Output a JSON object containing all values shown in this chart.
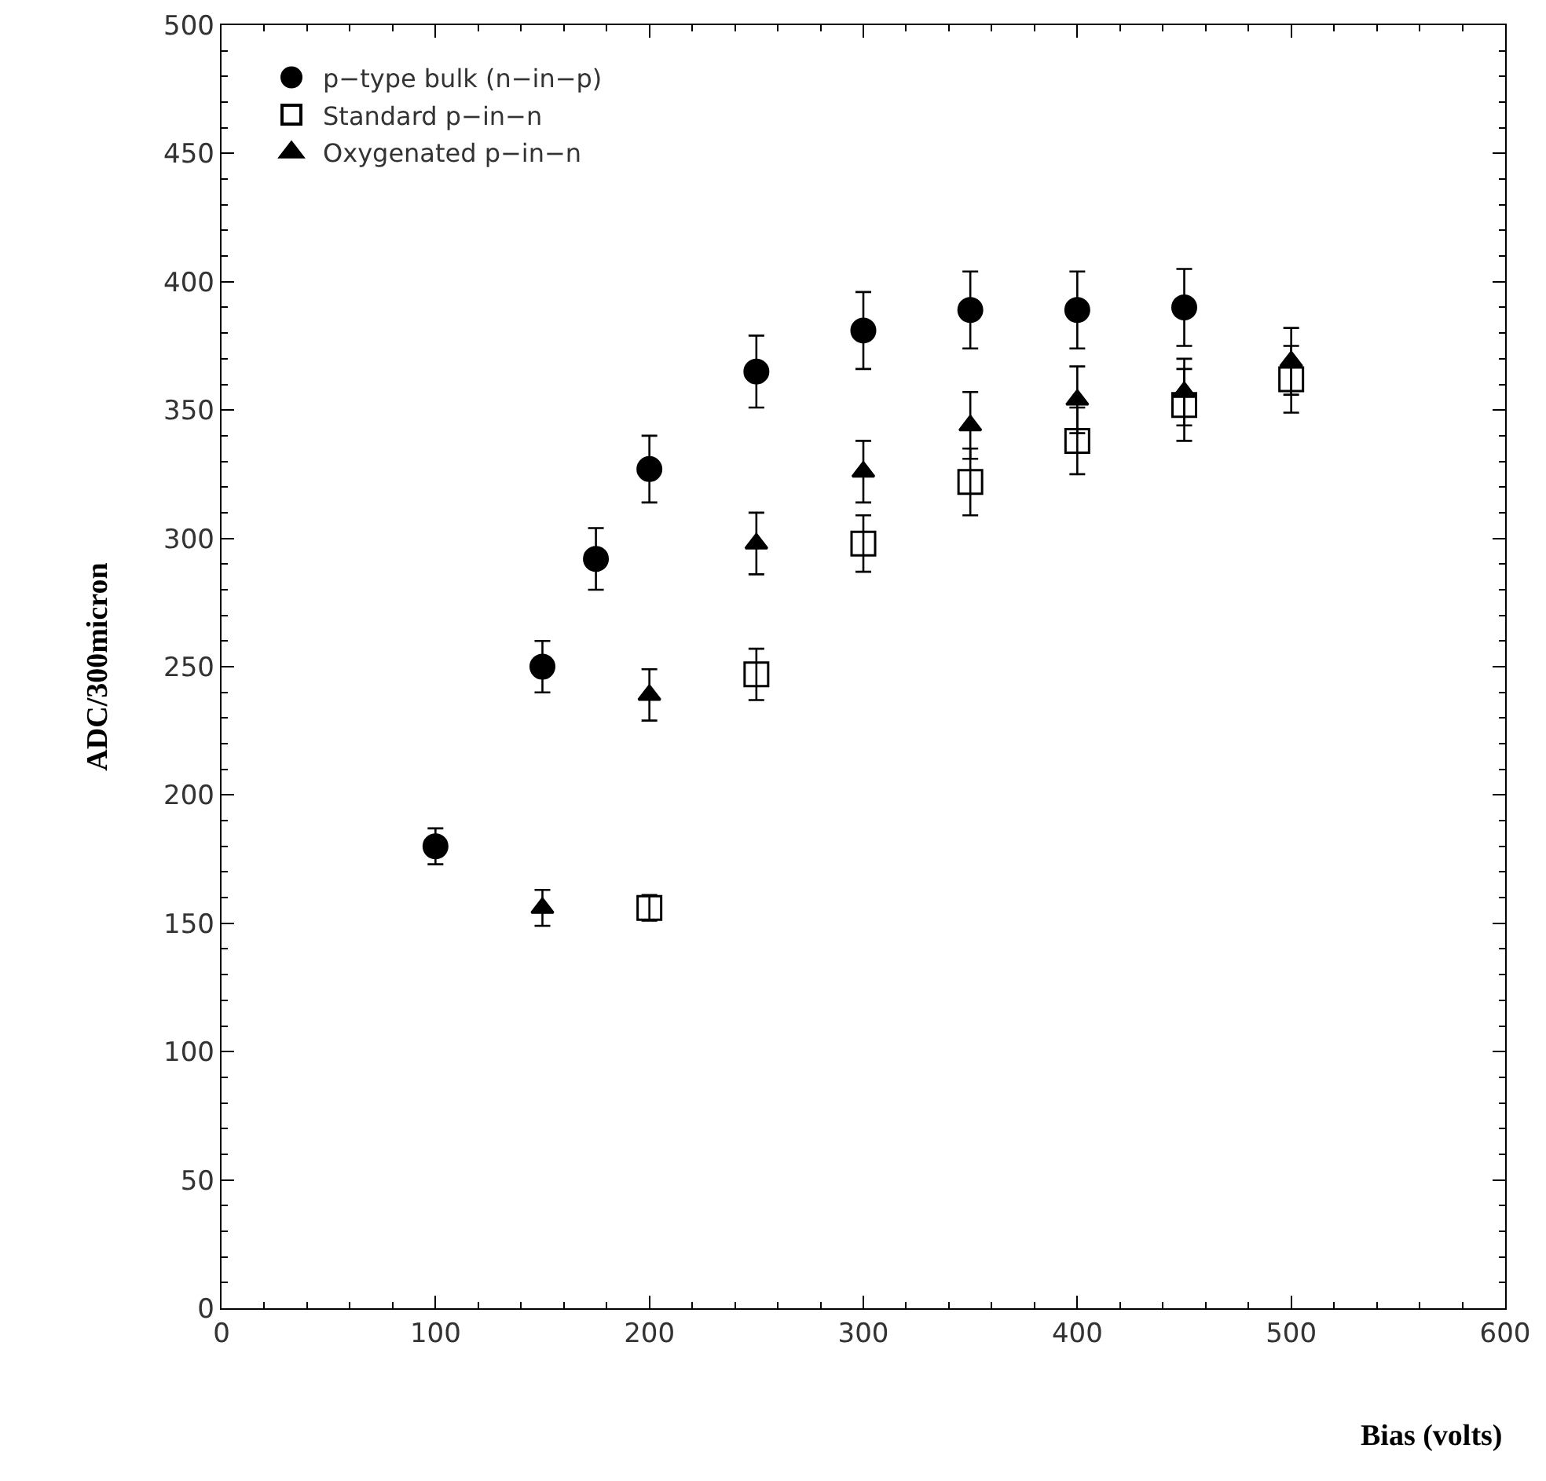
{
  "chart_data": {
    "type": "scatter",
    "xlabel": "Bias (volts)",
    "ylabel": "ADC/300micron",
    "xlim": [
      0,
      600
    ],
    "xticks": [
      0,
      100,
      200,
      300,
      400,
      500,
      600
    ],
    "ylim": [
      0,
      500
    ],
    "yticks": [
      0,
      50,
      100,
      150,
      200,
      250,
      300,
      350,
      400,
      450,
      500
    ],
    "grid": false,
    "legend": "top left",
    "series": [
      {
        "name": "p−type bulk (n−in−p)",
        "color": "#000000",
        "marker": "circle",
        "x": [
          100,
          150,
          175,
          200,
          250,
          300,
          350,
          400,
          450
        ],
        "values": [
          180,
          250,
          292,
          327,
          365,
          381,
          389,
          389,
          390
        ],
        "errors": [
          7,
          10,
          12,
          13,
          14,
          15,
          15,
          15,
          15
        ]
      },
      {
        "name": "Standard p−in−n",
        "color": "#000000",
        "marker": "square",
        "x": [
          200,
          250,
          300,
          350,
          400,
          450,
          500
        ],
        "values": [
          156,
          247,
          298,
          322,
          338,
          352,
          362
        ],
        "errors": [
          5,
          10,
          11,
          13,
          13,
          14,
          13
        ]
      },
      {
        "name": "Oxygenated p−in−n",
        "color": "#000000",
        "marker": "triangle",
        "x": [
          150,
          200,
          250,
          300,
          350,
          400,
          450,
          500
        ],
        "values": [
          156,
          239,
          298,
          326,
          344,
          354,
          357,
          369
        ],
        "errors": [
          7,
          10,
          12,
          12,
          13,
          13,
          13,
          13
        ]
      }
    ]
  }
}
